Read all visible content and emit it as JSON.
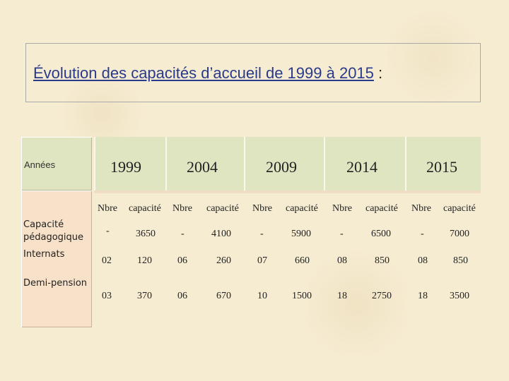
{
  "title": {
    "text": "Évolution des capacités d’accueil de 1999 à 2015",
    "colon": " :"
  },
  "table": {
    "header_label": "Années",
    "years": [
      "1999",
      "2004",
      "2009",
      "2014",
      "2015"
    ],
    "sub_headers": [
      "Nbre",
      "capacité",
      "Nbre",
      "capacité",
      "Nbre",
      "capacité",
      "Nbre",
      "capacité",
      "Nbre",
      "capacité"
    ],
    "row_labels": {
      "capacity": [
        "Capacité",
        "pédagogique"
      ],
      "internats": "Internats",
      "demi": "Demi-pension"
    },
    "rows": [
      [
        "-",
        "3650",
        "-",
        "4100",
        "-",
        "5900",
        "-",
        "6500",
        "-",
        "7000"
      ],
      [
        "02",
        "120",
        "06",
        "260",
        "07",
        "660",
        "08",
        "850",
        "08",
        "850"
      ],
      [
        "03",
        "370",
        "06",
        "670",
        "10",
        "1500",
        "18",
        "2750",
        "18",
        "3500"
      ]
    ]
  }
}
